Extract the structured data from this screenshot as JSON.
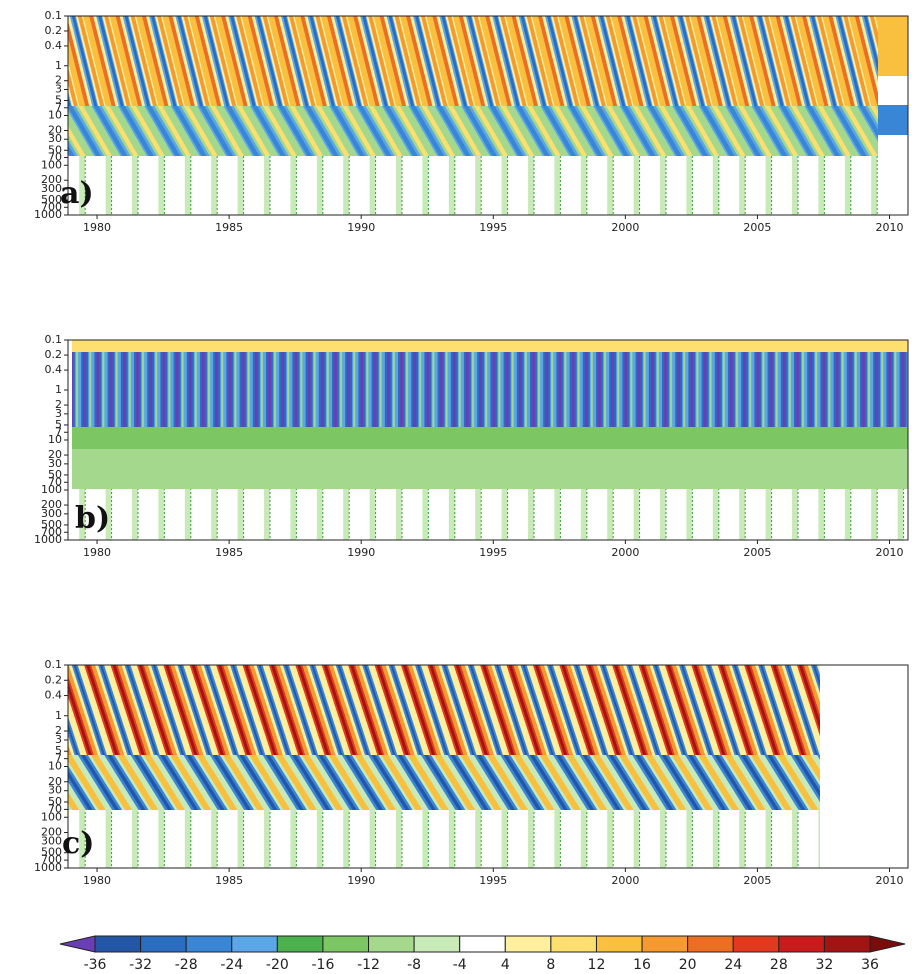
{
  "chart_data": [
    {
      "type": "contour",
      "panel_label": "a)",
      "xlim": [
        1978.9,
        2010.7
      ],
      "xticks": [
        1980,
        1985,
        1990,
        1995,
        2000,
        2005,
        2010
      ],
      "ylim": [
        0.1,
        1000
      ],
      "yscale": "log",
      "yreverse": true,
      "yticks": [
        0.1,
        0.2,
        0.4,
        1,
        2,
        3,
        5,
        7,
        10,
        20,
        30,
        50,
        70,
        100,
        200,
        300,
        500,
        700,
        1000
      ]
    },
    {
      "type": "contour",
      "panel_label": "b)",
      "xlim": [
        1978.9,
        2010.7
      ],
      "xticks": [
        1980,
        1985,
        1990,
        1995,
        2000,
        2005,
        2010
      ],
      "ylim": [
        0.1,
        1000
      ],
      "yscale": "log",
      "yreverse": true,
      "yticks": [
        0.1,
        0.2,
        0.4,
        1,
        2,
        3,
        5,
        7,
        10,
        20,
        30,
        50,
        70,
        100,
        200,
        300,
        500,
        700,
        1000
      ]
    },
    {
      "type": "contour",
      "panel_label": "c)",
      "xlim": [
        1978.9,
        2010.7
      ],
      "xticks": [
        1980,
        1985,
        1990,
        1995,
        2000,
        2005,
        2010
      ],
      "ylim": [
        0.1,
        1000
      ],
      "yscale": "log",
      "yreverse": true,
      "yticks": [
        0.1,
        0.2,
        0.4,
        1,
        2,
        3,
        5,
        7,
        10,
        20,
        30,
        50,
        70,
        100,
        200,
        300,
        500,
        700,
        1000
      ]
    },
    {
      "type": "colorbar",
      "levels": [
        -36,
        -32,
        -28,
        -24,
        -20,
        -16,
        -12,
        -8,
        -4,
        4,
        8,
        12,
        16,
        20,
        24,
        28,
        32,
        36
      ],
      "colors": [
        "#2456a8",
        "#2a6cc0",
        "#3a86d6",
        "#5aa6e6",
        "#4cb04c",
        "#7cc664",
        "#a4d88c",
        "#c8eab8",
        "#ffffff",
        "#fff0a0",
        "#fcdf70",
        "#f9c040",
        "#f49a30",
        "#ec6e22",
        "#e23a1e",
        "#c81c1c",
        "#a01414"
      ],
      "under_color": "#6a3fb5",
      "over_color": "#7a0c0c"
    }
  ]
}
